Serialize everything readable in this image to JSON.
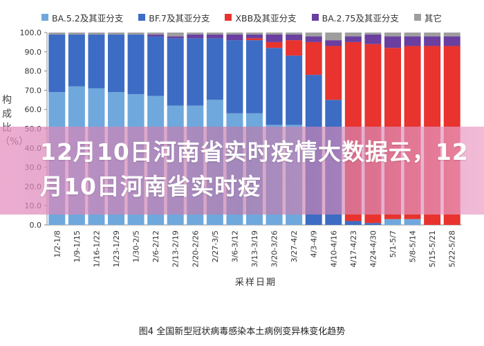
{
  "chart_data": {
    "type": "bar",
    "stacked": true,
    "categories": [
      "1/2-1/8",
      "1/9-1/15",
      "1/16-1/22",
      "1/23-1/29",
      "1/30-2/5",
      "2/6-2/12",
      "2/13-2/19",
      "2/20-2/26",
      "2/27-3/5",
      "3/6-3/12",
      "3/13-3/19",
      "3/20-3/26",
      "3/27-4/2",
      "4/3-4/9",
      "4/10-4/16",
      "4/17-4/23",
      "4/24-4/30",
      "5/1-5/7",
      "5/8-5/14",
      "5/15-5/21",
      "5/22-5/28"
    ],
    "series": [
      {
        "name": "BA.5.2及其亚分支",
        "color": "#6fa8dc",
        "values": [
          69,
          72,
          71,
          69,
          68,
          67,
          62,
          62,
          65,
          58,
          58,
          52,
          52,
          0,
          0,
          0,
          0,
          3,
          3,
          0,
          0
        ]
      },
      {
        "name": "BF.7及其亚分支",
        "color": "#3d6cc4",
        "values": [
          30,
          27,
          28,
          30,
          31,
          31,
          35,
          35,
          32,
          38,
          38,
          40,
          36,
          78,
          65,
          2,
          1,
          0,
          0,
          0,
          0
        ]
      },
      {
        "name": "XBB及其亚分支",
        "color": "#e8332e",
        "values": [
          0,
          0,
          0,
          0,
          0,
          0,
          0,
          0,
          0,
          0,
          1,
          3,
          8,
          17,
          28,
          93,
          93,
          89,
          90,
          93,
          93
        ]
      },
      {
        "name": "BA.2.75及其亚分支",
        "color": "#6a3fa0",
        "values": [
          0,
          0,
          0,
          0,
          0,
          1,
          1,
          2,
          2,
          3,
          2,
          4,
          3,
          3,
          3,
          3,
          5,
          6,
          5,
          5,
          5
        ]
      },
      {
        "name": "其它",
        "color": "#9e9e9e",
        "values": [
          1,
          1,
          1,
          1,
          1,
          1,
          2,
          1,
          1,
          1,
          1,
          1,
          1,
          2,
          4,
          2,
          1,
          2,
          2,
          2,
          2
        ]
      }
    ],
    "legend_labels": [
      "BA.5.2及其亚分支",
      "BF.7及其亚分支",
      "XBB及其亚分支",
      "BA.2.75及其亚分支",
      "其它"
    ],
    "y_ticks": [
      "100.0",
      "90.0",
      "80.0",
      "70.0",
      "60.0",
      "50.0",
      "40.0",
      "30.0",
      "20.0",
      "10.0",
      "0.0"
    ],
    "ylim": [
      0,
      100
    ],
    "ylabel": "构成比（%）",
    "xlabel": "采样日期",
    "caption": "图4 全国新型冠状病毒感染本土病例变异株变化趋势",
    "legend_position": "top"
  },
  "overlay": {
    "title": "12月10日河南省实时疫情大数据云，12月10日河南省实时疫"
  }
}
